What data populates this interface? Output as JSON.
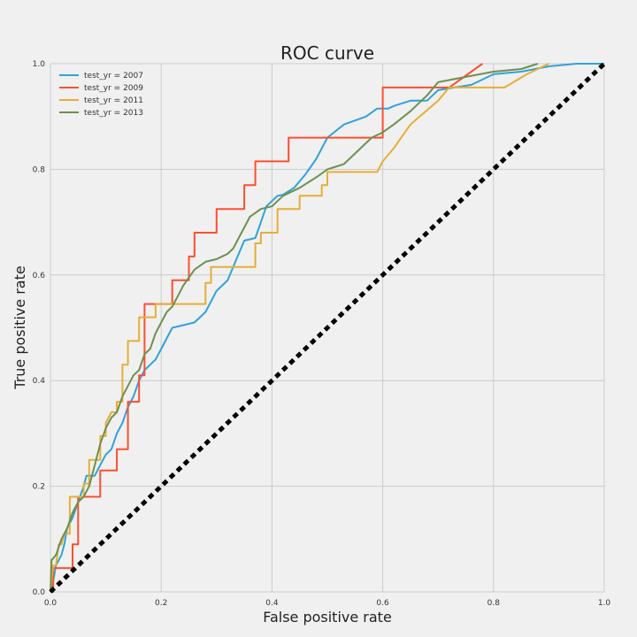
{
  "chart_data": {
    "type": "line",
    "title": "ROC curve",
    "xlabel": "False positive rate",
    "ylabel": "True positive rate",
    "xlim": [
      0,
      1
    ],
    "ylim": [
      0,
      1
    ],
    "grid": true,
    "legend_position": "top-left",
    "xticks": [
      "0.0",
      "0.2",
      "0.4",
      "0.6",
      "0.8",
      "1.0"
    ],
    "yticks": [
      "0.0",
      "0.2",
      "0.4",
      "0.6",
      "0.8",
      "1.0"
    ],
    "series": [
      {
        "name": "test_yr = 2007",
        "color": "#30a2da",
        "points": [
          [
            0,
            0
          ],
          [
            0.005,
            0.02
          ],
          [
            0.01,
            0.05
          ],
          [
            0.02,
            0.07
          ],
          [
            0.025,
            0.09
          ],
          [
            0.03,
            0.12
          ],
          [
            0.04,
            0.14
          ],
          [
            0.05,
            0.17
          ],
          [
            0.06,
            0.2
          ],
          [
            0.065,
            0.22
          ],
          [
            0.08,
            0.22
          ],
          [
            0.09,
            0.24
          ],
          [
            0.1,
            0.26
          ],
          [
            0.11,
            0.27
          ],
          [
            0.12,
            0.3
          ],
          [
            0.13,
            0.32
          ],
          [
            0.14,
            0.35
          ],
          [
            0.15,
            0.37
          ],
          [
            0.16,
            0.4
          ],
          [
            0.17,
            0.42
          ],
          [
            0.19,
            0.44
          ],
          [
            0.2,
            0.46
          ],
          [
            0.21,
            0.48
          ],
          [
            0.22,
            0.5
          ],
          [
            0.24,
            0.505
          ],
          [
            0.26,
            0.51
          ],
          [
            0.27,
            0.52
          ],
          [
            0.28,
            0.53
          ],
          [
            0.3,
            0.57
          ],
          [
            0.32,
            0.59
          ],
          [
            0.34,
            0.64
          ],
          [
            0.35,
            0.665
          ],
          [
            0.37,
            0.67
          ],
          [
            0.38,
            0.7
          ],
          [
            0.39,
            0.73
          ],
          [
            0.4,
            0.74
          ],
          [
            0.41,
            0.75
          ],
          [
            0.42,
            0.752
          ],
          [
            0.44,
            0.765
          ],
          [
            0.46,
            0.79
          ],
          [
            0.48,
            0.82
          ],
          [
            0.5,
            0.86
          ],
          [
            0.53,
            0.885
          ],
          [
            0.57,
            0.9
          ],
          [
            0.59,
            0.915
          ],
          [
            0.61,
            0.915
          ],
          [
            0.62,
            0.92
          ],
          [
            0.65,
            0.93
          ],
          [
            0.68,
            0.93
          ],
          [
            0.7,
            0.95
          ],
          [
            0.73,
            0.955
          ],
          [
            0.76,
            0.96
          ],
          [
            0.8,
            0.98
          ],
          [
            0.85,
            0.985
          ],
          [
            0.9,
            0.995
          ],
          [
            0.95,
            1
          ],
          [
            1,
            1
          ]
        ]
      },
      {
        "name": "test_yr = 2009",
        "color": "#fc4f30",
        "points": [
          [
            0,
            0
          ],
          [
            0.005,
            0
          ],
          [
            0.005,
            0.045
          ],
          [
            0.04,
            0.045
          ],
          [
            0.04,
            0.09
          ],
          [
            0.05,
            0.09
          ],
          [
            0.05,
            0.18
          ],
          [
            0.09,
            0.18
          ],
          [
            0.09,
            0.23
          ],
          [
            0.12,
            0.23
          ],
          [
            0.12,
            0.27
          ],
          [
            0.14,
            0.27
          ],
          [
            0.14,
            0.36
          ],
          [
            0.16,
            0.36
          ],
          [
            0.16,
            0.41
          ],
          [
            0.17,
            0.41
          ],
          [
            0.17,
            0.545
          ],
          [
            0.22,
            0.545
          ],
          [
            0.22,
            0.59
          ],
          [
            0.25,
            0.59
          ],
          [
            0.25,
            0.635
          ],
          [
            0.26,
            0.635
          ],
          [
            0.26,
            0.68
          ],
          [
            0.3,
            0.68
          ],
          [
            0.3,
            0.725
          ],
          [
            0.35,
            0.725
          ],
          [
            0.35,
            0.77
          ],
          [
            0.37,
            0.77
          ],
          [
            0.37,
            0.815
          ],
          [
            0.43,
            0.815
          ],
          [
            0.43,
            0.86
          ],
          [
            0.6,
            0.86
          ],
          [
            0.6,
            0.955
          ],
          [
            0.72,
            0.955
          ],
          [
            0.78,
            1
          ]
        ]
      },
      {
        "name": "test_yr = 2011",
        "color": "#e5ae38",
        "points": [
          [
            0,
            0
          ],
          [
            0.005,
            0.05
          ],
          [
            0.01,
            0.05
          ],
          [
            0.015,
            0.09
          ],
          [
            0.02,
            0.09
          ],
          [
            0.025,
            0.11
          ],
          [
            0.035,
            0.11
          ],
          [
            0.035,
            0.18
          ],
          [
            0.06,
            0.18
          ],
          [
            0.06,
            0.205
          ],
          [
            0.07,
            0.205
          ],
          [
            0.07,
            0.25
          ],
          [
            0.09,
            0.25
          ],
          [
            0.09,
            0.295
          ],
          [
            0.1,
            0.295
          ],
          [
            0.1,
            0.32
          ],
          [
            0.11,
            0.34
          ],
          [
            0.12,
            0.34
          ],
          [
            0.12,
            0.36
          ],
          [
            0.13,
            0.36
          ],
          [
            0.13,
            0.43
          ],
          [
            0.14,
            0.43
          ],
          [
            0.14,
            0.475
          ],
          [
            0.16,
            0.475
          ],
          [
            0.16,
            0.52
          ],
          [
            0.19,
            0.52
          ],
          [
            0.19,
            0.545
          ],
          [
            0.28,
            0.545
          ],
          [
            0.28,
            0.585
          ],
          [
            0.29,
            0.585
          ],
          [
            0.29,
            0.615
          ],
          [
            0.37,
            0.615
          ],
          [
            0.37,
            0.66
          ],
          [
            0.38,
            0.66
          ],
          [
            0.38,
            0.68
          ],
          [
            0.41,
            0.68
          ],
          [
            0.41,
            0.725
          ],
          [
            0.45,
            0.725
          ],
          [
            0.45,
            0.75
          ],
          [
            0.49,
            0.75
          ],
          [
            0.49,
            0.77
          ],
          [
            0.5,
            0.77
          ],
          [
            0.5,
            0.795
          ],
          [
            0.59,
            0.795
          ],
          [
            0.6,
            0.815
          ],
          [
            0.62,
            0.84
          ],
          [
            0.65,
            0.885
          ],
          [
            0.7,
            0.93
          ],
          [
            0.72,
            0.955
          ],
          [
            0.82,
            0.955
          ],
          [
            0.86,
            0.98
          ],
          [
            0.88,
            0.99
          ],
          [
            0.9,
            1
          ]
        ]
      },
      {
        "name": "test_yr = 2013",
        "color": "#6d904f",
        "points": [
          [
            0,
            0
          ],
          [
            0.002,
            0.06
          ],
          [
            0.01,
            0.07
          ],
          [
            0.02,
            0.1
          ],
          [
            0.03,
            0.12
          ],
          [
            0.04,
            0.15
          ],
          [
            0.05,
            0.17
          ],
          [
            0.06,
            0.18
          ],
          [
            0.07,
            0.2
          ],
          [
            0.08,
            0.24
          ],
          [
            0.09,
            0.28
          ],
          [
            0.1,
            0.31
          ],
          [
            0.11,
            0.33
          ],
          [
            0.12,
            0.34
          ],
          [
            0.13,
            0.37
          ],
          [
            0.14,
            0.39
          ],
          [
            0.15,
            0.41
          ],
          [
            0.16,
            0.42
          ],
          [
            0.17,
            0.45
          ],
          [
            0.18,
            0.46
          ],
          [
            0.19,
            0.49
          ],
          [
            0.2,
            0.51
          ],
          [
            0.21,
            0.53
          ],
          [
            0.22,
            0.54
          ],
          [
            0.23,
            0.56
          ],
          [
            0.24,
            0.58
          ],
          [
            0.26,
            0.61
          ],
          [
            0.28,
            0.625
          ],
          [
            0.3,
            0.63
          ],
          [
            0.32,
            0.64
          ],
          [
            0.33,
            0.65
          ],
          [
            0.34,
            0.67
          ],
          [
            0.35,
            0.69
          ],
          [
            0.36,
            0.71
          ],
          [
            0.38,
            0.725
          ],
          [
            0.4,
            0.73
          ],
          [
            0.42,
            0.75
          ],
          [
            0.45,
            0.765
          ],
          [
            0.48,
            0.785
          ],
          [
            0.5,
            0.8
          ],
          [
            0.53,
            0.81
          ],
          [
            0.56,
            0.84
          ],
          [
            0.58,
            0.86
          ],
          [
            0.6,
            0.87
          ],
          [
            0.62,
            0.885
          ],
          [
            0.65,
            0.91
          ],
          [
            0.68,
            0.94
          ],
          [
            0.7,
            0.965
          ],
          [
            0.75,
            0.975
          ],
          [
            0.8,
            0.985
          ],
          [
            0.85,
            0.99
          ],
          [
            0.88,
            1
          ]
        ]
      },
      {
        "name": "",
        "color": "#000000",
        "dashed": true,
        "points": [
          [
            0,
            0
          ],
          [
            1,
            1
          ]
        ]
      }
    ]
  }
}
